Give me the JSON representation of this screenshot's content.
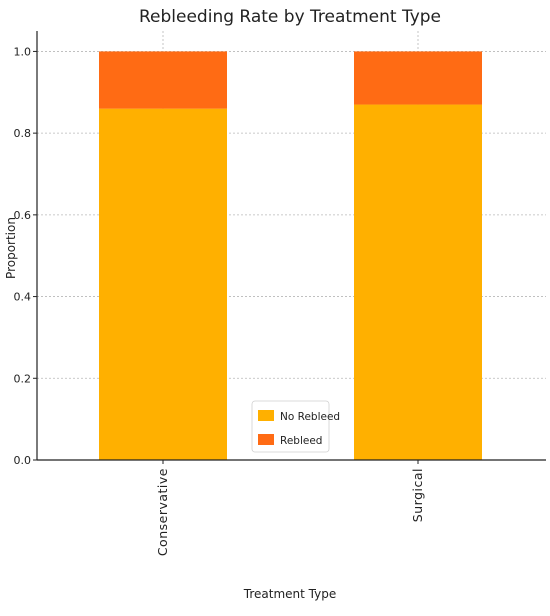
{
  "chart_data": {
    "type": "bar",
    "stacked": true,
    "title": "Rebleeding Rate by Treatment Type",
    "xlabel": "Treatment Type",
    "ylabel": "Proportion",
    "categories": [
      "Conservative",
      "Surgical"
    ],
    "series": [
      {
        "name": "No Rebleed",
        "color": "#FFB000",
        "values": [
          0.86,
          0.87
        ]
      },
      {
        "name": "Rebleed",
        "color": "#FF6B14",
        "values": [
          0.14,
          0.13
        ]
      }
    ],
    "ylim": [
      0,
      1.05
    ],
    "yticks": [
      "0.0",
      "0.2",
      "0.4",
      "0.6",
      "0.8",
      "1.0"
    ],
    "grid": true,
    "legend_position": "bottom-center",
    "category_label_rotation": "vertical"
  }
}
